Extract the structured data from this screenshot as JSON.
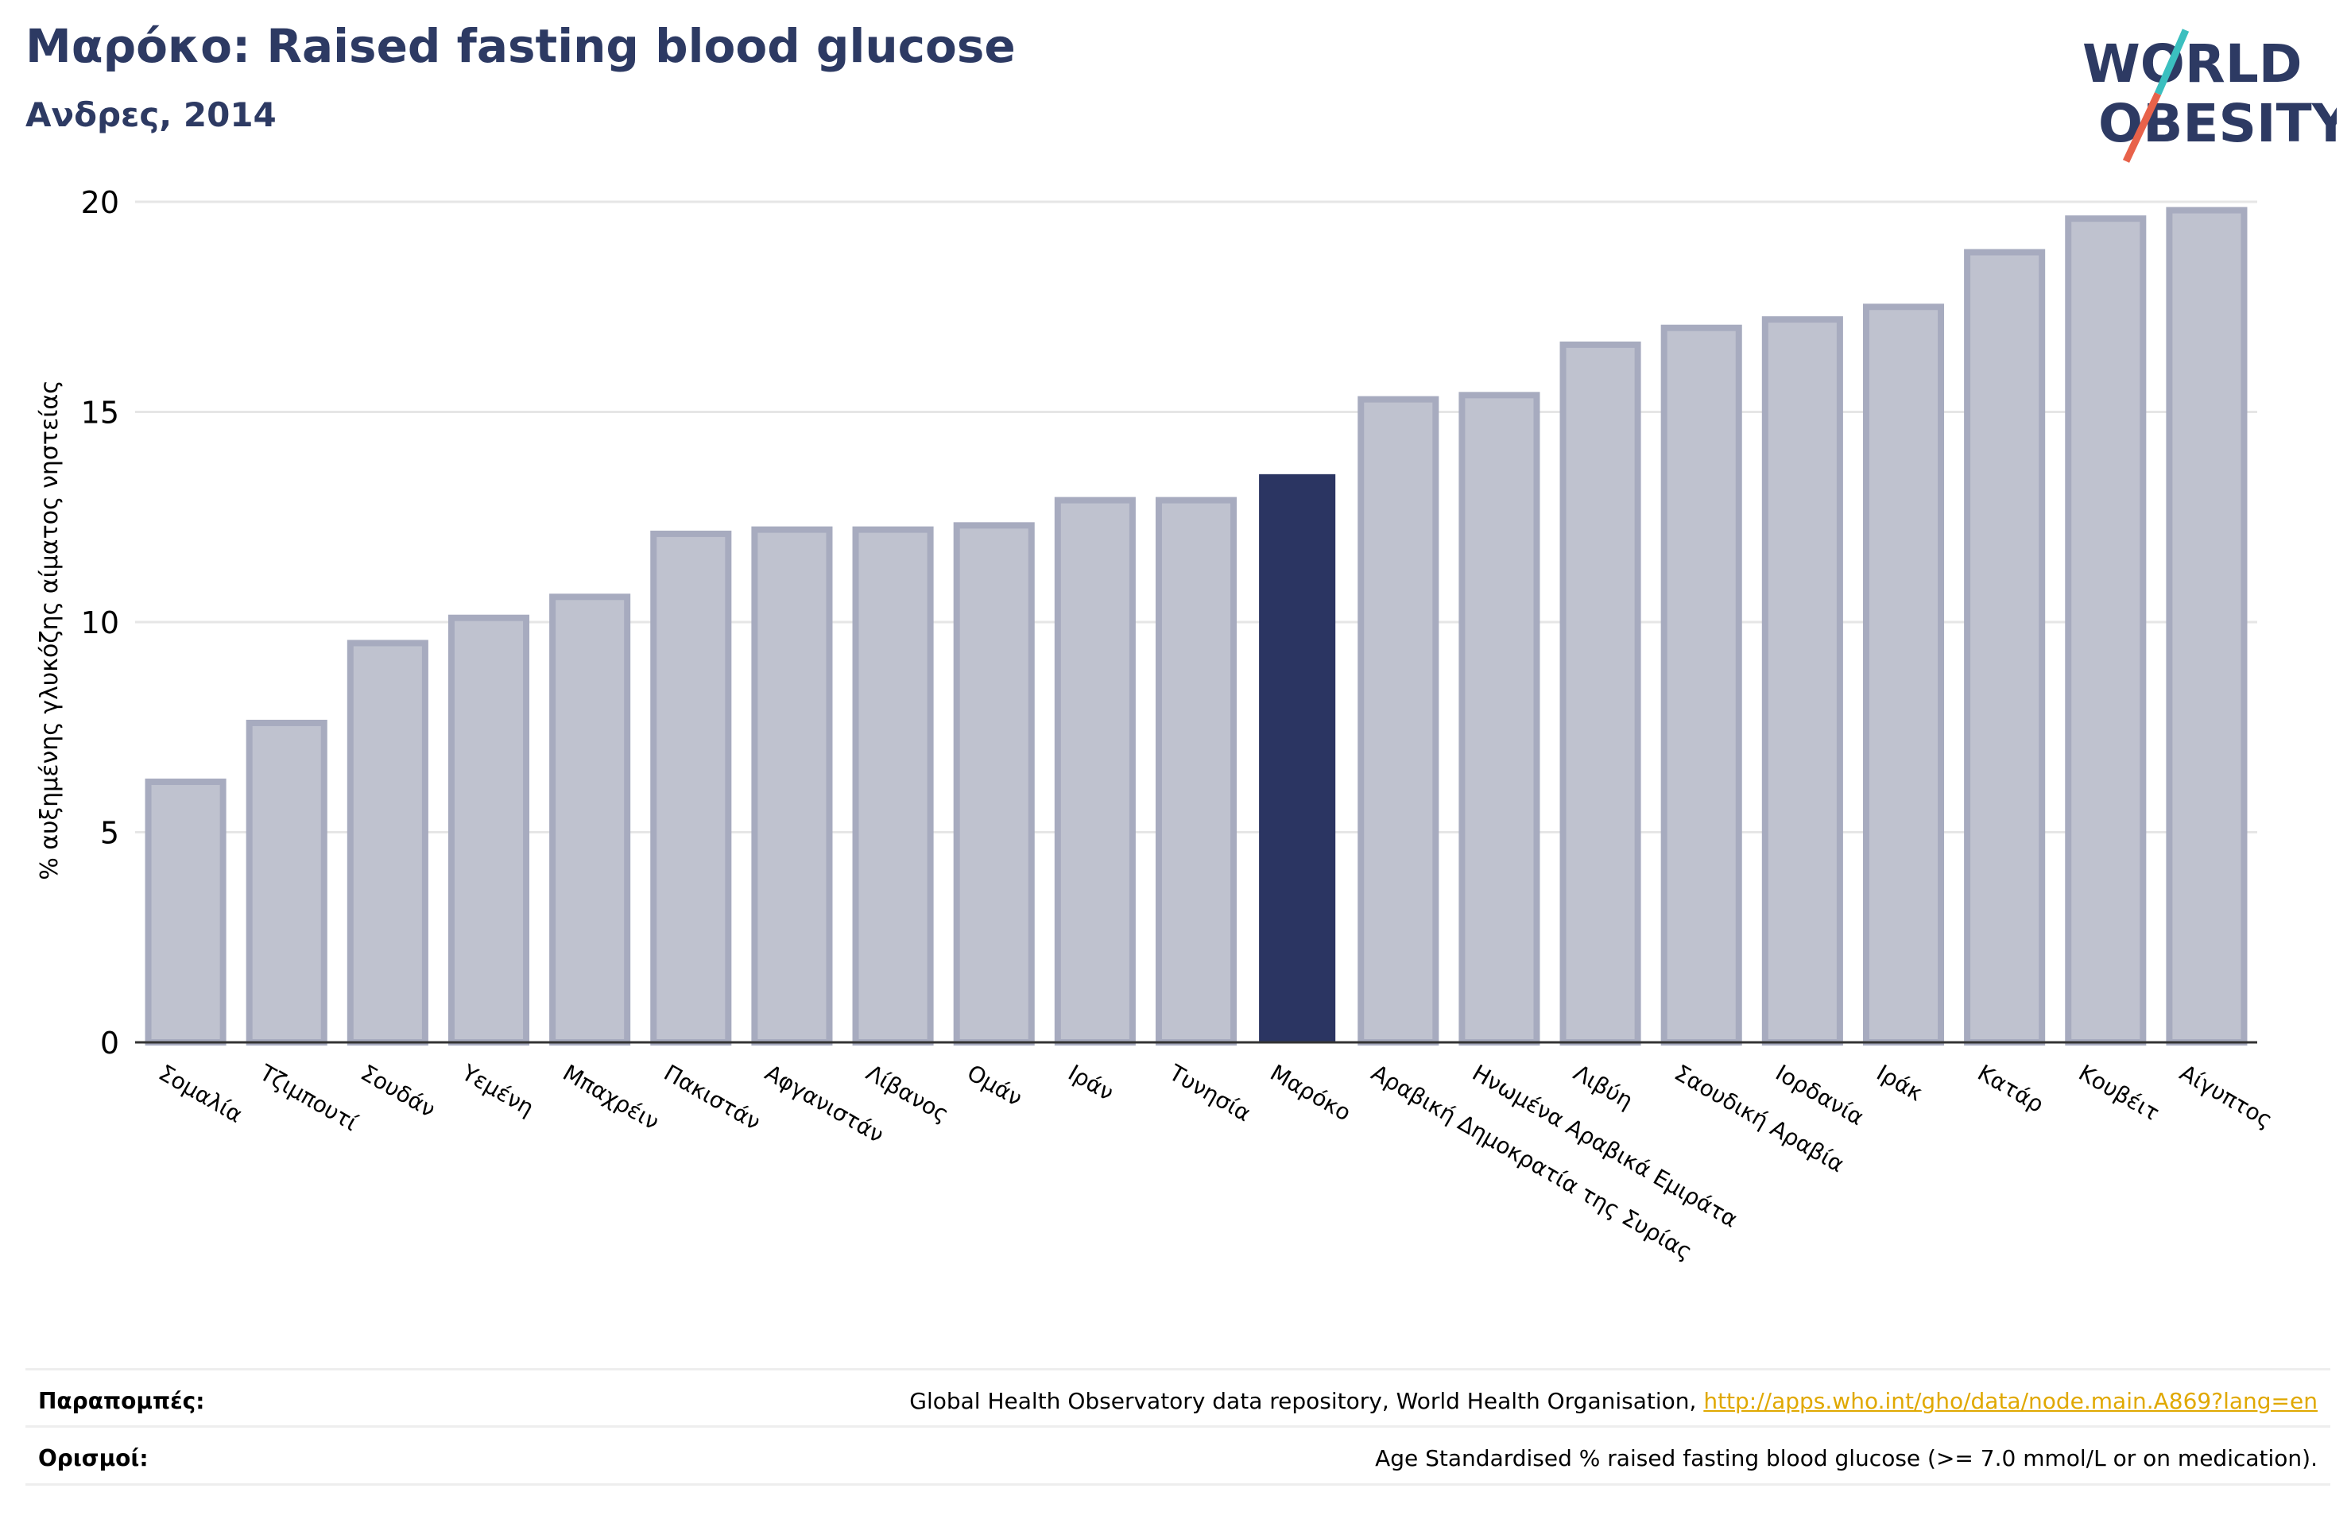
{
  "header": {
    "title": "Μαρόκο: Raised fasting blood glucose",
    "subtitle": "Ανδρες, 2014"
  },
  "logo": {
    "line1": "WORLD",
    "line2": "OBESITY",
    "colors": {
      "text": "#2d3a63",
      "slash_top": "#3bbfbf",
      "slash_bottom": "#e8624a"
    }
  },
  "chart_data": {
    "type": "bar",
    "title": "",
    "xlabel": "",
    "ylabel": "% αυξημένης γλυκόζης αίματος νηστείας",
    "ylim": [
      0,
      20
    ],
    "yticks": [
      0,
      5,
      10,
      15,
      20
    ],
    "grid": true,
    "categories": [
      "Σομαλία",
      "Τζιμπουτί",
      "Σουδάν",
      "Υεμένη",
      "Μπαχρέιν",
      "Πακιστάν",
      "Αφγανιστάν",
      "Λίβανος",
      "Ομάν",
      "Ιράν",
      "Τυνησία",
      "Μαρόκο",
      "Αραβική Δημοκρατία της Συρίας",
      "Ηνωμένα Αραβικά Εμιράτα",
      "Λιβύη",
      "Σαουδική Αραβία",
      "Ιορδανία",
      "Ιράκ",
      "Κατάρ",
      "Κουβέιτ",
      "Αίγυπτος"
    ],
    "values": [
      6.2,
      7.6,
      9.5,
      10.1,
      10.6,
      12.1,
      12.2,
      12.2,
      12.3,
      12.9,
      12.9,
      13.5,
      15.3,
      15.4,
      16.6,
      17.0,
      17.2,
      17.5,
      18.8,
      19.6,
      19.8
    ],
    "highlight": "Μαρόκο",
    "colors": {
      "bar": "#bfc2cf",
      "bar_edge": "#a7abbf",
      "highlight": "#2b3562"
    }
  },
  "footer": {
    "references_label": "Παραπομπές:",
    "references_text": "Global Health Observatory data repository, World Health Organisation, ",
    "references_link": "http://apps.who.int/gho/data/node.main.A869?lang=en",
    "definitions_label": "Ορισμοί:",
    "definitions_text": "Age Standardised % raised fasting blood glucose (>= 7.0 mmol/L or on medication)."
  }
}
